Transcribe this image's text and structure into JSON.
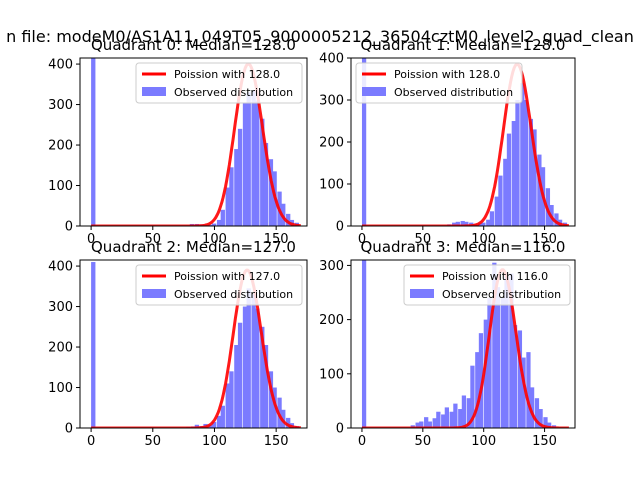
{
  "suptitle": "n file: modeM0/AS1A11_049T05_9000005212_36504cztM0_level2_quad_clean",
  "colors": {
    "observed": "#7b7bff",
    "poisson": "#ff0000",
    "axis": "#000000"
  },
  "chart_data": [
    {
      "type": "bar",
      "title": "Quadrant 0: Median=128.0",
      "median": 128,
      "legend": {
        "placement": "top-right",
        "poisson_label": "Poission with 128.0",
        "observed_label": "Observed distribution"
      },
      "xlim": [
        -9,
        175
      ],
      "ylim": [
        0,
        415
      ],
      "xticks": [
        0,
        50,
        100,
        150
      ],
      "xtick_labels": [
        "0",
        "50",
        "100",
        "150"
      ],
      "yticks": [
        0,
        100,
        200,
        300,
        400
      ],
      "ytick_labels": [
        "0",
        "100",
        "200",
        "300",
        "400"
      ],
      "bin_width": 3.5,
      "bins": [
        [
          0,
          415
        ],
        [
          80,
          5
        ],
        [
          84,
          5
        ],
        [
          88,
          4
        ],
        [
          91,
          3
        ],
        [
          95,
          3
        ],
        [
          98,
          6
        ],
        [
          102,
          15
        ],
        [
          105,
          40
        ],
        [
          109,
          95
        ],
        [
          112,
          145
        ],
        [
          116,
          190
        ],
        [
          119,
          240
        ],
        [
          123,
          305
        ],
        [
          126,
          330
        ],
        [
          130,
          335
        ],
        [
          133,
          310
        ],
        [
          137,
          265
        ],
        [
          140,
          205
        ],
        [
          144,
          165
        ],
        [
          147,
          135
        ],
        [
          151,
          85
        ],
        [
          154,
          55
        ],
        [
          158,
          30
        ],
        [
          161,
          15
        ],
        [
          165,
          8
        ]
      ],
      "poisson_curve": {
        "mean": 128,
        "peak": 400,
        "x_range": [
          0,
          170
        ]
      }
    },
    {
      "type": "bar",
      "title": "Quadrant 1: Median=128.0",
      "median": 128,
      "legend": {
        "placement": "top-left",
        "poisson_label": "Poission with 128.0",
        "observed_label": "Observed distribution"
      },
      "xlim": [
        -9,
        175
      ],
      "ylim": [
        0,
        400
      ],
      "xticks": [
        0,
        50,
        100,
        150
      ],
      "xtick_labels": [
        "0",
        "50",
        "100",
        "150"
      ],
      "yticks": [
        0,
        100,
        200,
        300,
        400
      ],
      "ytick_labels": [
        "0",
        "100",
        "200",
        "300",
        "400"
      ],
      "bin_width": 3.5,
      "bins": [
        [
          0,
          400
        ],
        [
          70,
          4
        ],
        [
          74,
          8
        ],
        [
          77,
          10
        ],
        [
          81,
          12
        ],
        [
          84,
          10
        ],
        [
          88,
          8
        ],
        [
          91,
          5
        ],
        [
          95,
          6
        ],
        [
          98,
          8
        ],
        [
          102,
          15
        ],
        [
          105,
          35
        ],
        [
          109,
          70
        ],
        [
          112,
          120
        ],
        [
          116,
          160
        ],
        [
          119,
          220
        ],
        [
          123,
          250
        ],
        [
          126,
          300
        ],
        [
          130,
          340
        ],
        [
          133,
          300
        ],
        [
          137,
          255
        ],
        [
          140,
          230
        ],
        [
          144,
          170
        ],
        [
          147,
          140
        ],
        [
          151,
          90
        ],
        [
          154,
          50
        ],
        [
          158,
          30
        ],
        [
          161,
          15
        ],
        [
          165,
          8
        ]
      ],
      "poisson_curve": {
        "mean": 128,
        "peak": 385,
        "x_range": [
          0,
          170
        ]
      }
    },
    {
      "type": "bar",
      "title": "Quadrant 2: Median=127.0",
      "median": 127,
      "legend": {
        "placement": "top-right",
        "poisson_label": "Poission with 127.0",
        "observed_label": "Observed distribution"
      },
      "xlim": [
        -9,
        175
      ],
      "ylim": [
        0,
        415
      ],
      "xticks": [
        0,
        50,
        100,
        150
      ],
      "xtick_labels": [
        "0",
        "50",
        "100",
        "150"
      ],
      "yticks": [
        0,
        100,
        200,
        300,
        400
      ],
      "ytick_labels": [
        "0",
        "100",
        "200",
        "300",
        "400"
      ],
      "bin_width": 3.5,
      "bins": [
        [
          0,
          410
        ],
        [
          77,
          3
        ],
        [
          81,
          4
        ],
        [
          84,
          8
        ],
        [
          88,
          5
        ],
        [
          91,
          10
        ],
        [
          95,
          8
        ],
        [
          98,
          15
        ],
        [
          102,
          30
        ],
        [
          105,
          55
        ],
        [
          109,
          110
        ],
        [
          112,
          140
        ],
        [
          116,
          205
        ],
        [
          119,
          260
        ],
        [
          123,
          300
        ],
        [
          126,
          345
        ],
        [
          130,
          330
        ],
        [
          133,
          295
        ],
        [
          137,
          250
        ],
        [
          140,
          205
        ],
        [
          144,
          140
        ],
        [
          147,
          100
        ],
        [
          151,
          75
        ],
        [
          154,
          45
        ],
        [
          158,
          25
        ],
        [
          161,
          12
        ],
        [
          165,
          5
        ]
      ],
      "poisson_curve": {
        "mean": 127,
        "peak": 390,
        "x_range": [
          0,
          170
        ]
      }
    },
    {
      "type": "bar",
      "title": "Quadrant 3: Median=116.0",
      "median": 116,
      "legend": {
        "placement": "top-right",
        "poisson_label": "Poission with 116.0",
        "observed_label": "Observed distribution"
      },
      "xlim": [
        -9,
        175
      ],
      "ylim": [
        0,
        310
      ],
      "xticks": [
        0,
        50,
        100,
        150
      ],
      "xtick_labels": [
        "0",
        "50",
        "100",
        "150"
      ],
      "yticks": [
        0,
        100,
        200,
        300
      ],
      "ytick_labels": [
        "0",
        "100",
        "200",
        "300"
      ],
      "bin_width": 3.5,
      "bins": [
        [
          0,
          310
        ],
        [
          40,
          5
        ],
        [
          44,
          10
        ],
        [
          47,
          12
        ],
        [
          51,
          20
        ],
        [
          54,
          12
        ],
        [
          58,
          18
        ],
        [
          61,
          30
        ],
        [
          65,
          25
        ],
        [
          68,
          38
        ],
        [
          72,
          30
        ],
        [
          75,
          45
        ],
        [
          79,
          35
        ],
        [
          82,
          60
        ],
        [
          86,
          55
        ],
        [
          89,
          115
        ],
        [
          93,
          140
        ],
        [
          96,
          175
        ],
        [
          100,
          200
        ],
        [
          103,
          240
        ],
        [
          107,
          305
        ],
        [
          110,
          260
        ],
        [
          114,
          240
        ],
        [
          117,
          280
        ],
        [
          121,
          285
        ],
        [
          124,
          190
        ],
        [
          128,
          180
        ],
        [
          131,
          130
        ],
        [
          135,
          140
        ],
        [
          138,
          75
        ],
        [
          142,
          55
        ],
        [
          145,
          35
        ],
        [
          149,
          20
        ],
        [
          152,
          10
        ],
        [
          156,
          5
        ]
      ],
      "poisson_curve": {
        "mean": 116,
        "peak": 292,
        "x_range": [
          0,
          170
        ]
      }
    }
  ]
}
